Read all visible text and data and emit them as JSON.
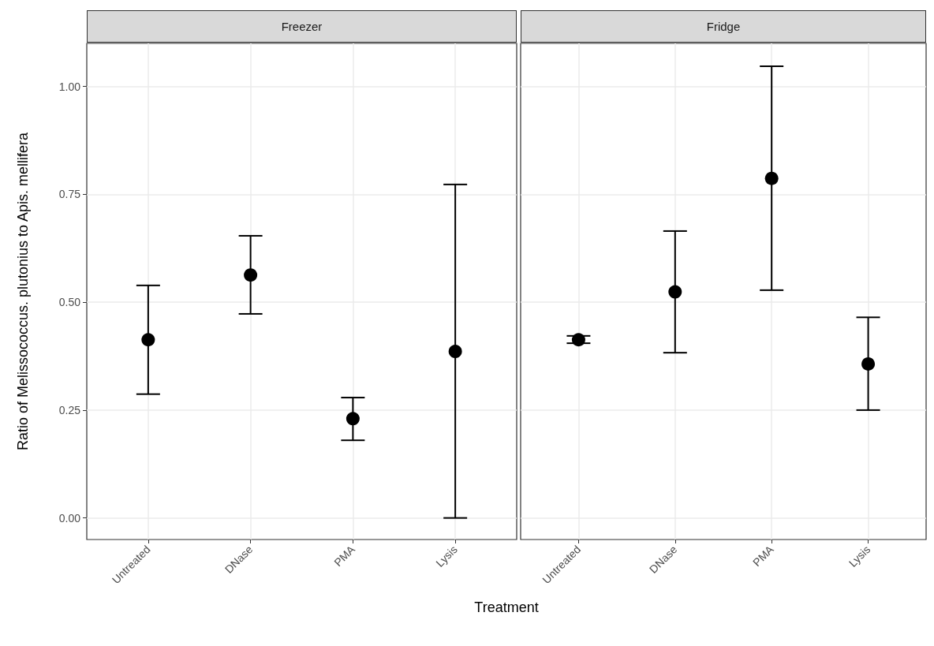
{
  "chart_data": [
    {
      "type": "scatter",
      "title": "Freezer",
      "ylabel": "Ratio of Melissococcus. plutonius to Apis. mellifera",
      "xlabel": "Treatment",
      "categories": [
        "Untreated",
        "DNase",
        "PMA",
        "Lysis"
      ],
      "series": [
        {
          "color": "#000000",
          "values": [
            0.413,
            0.563,
            0.23,
            0.386
          ],
          "errors": [
            [
              0.287,
              0.539
            ],
            [
              0.473,
              0.654
            ],
            [
              0.18,
              0.279
            ],
            [
              0,
              0.773
            ]
          ]
        }
      ],
      "ylim": [
        -0.05,
        1.1
      ],
      "yticks": [
        {
          "value": 0,
          "label": "0.00"
        },
        {
          "value": 0.25,
          "label": "0.25"
        },
        {
          "value": 0.5,
          "label": "0.50"
        },
        {
          "value": 0.75,
          "label": "0.75"
        },
        {
          "value": 1,
          "label": "1.00"
        }
      ],
      "grid": true,
      "marker": "circle"
    },
    {
      "type": "scatter",
      "title": "Fridge",
      "categories": [
        "Untreated",
        "DNase",
        "PMA",
        "Lysis"
      ],
      "series": [
        {
          "color": "#000000",
          "values": [
            0.413,
            0.524,
            0.787,
            0.357
          ],
          "errors": [
            [
              0.405,
              0.422
            ],
            [
              0.383,
              0.665
            ],
            [
              0.528,
              1.047
            ],
            [
              0.25,
              0.465
            ]
          ]
        }
      ],
      "ylim": [
        -0.05,
        1.1
      ],
      "yticks": [
        {
          "value": 0,
          "label": null
        },
        {
          "value": 0.25,
          "label": null
        },
        {
          "value": 0.5,
          "label": null
        },
        {
          "value": 0.75,
          "label": null
        },
        {
          "value": 1,
          "label": null
        }
      ],
      "grid": true,
      "marker": "circle",
      "tick_labels": "x"
    }
  ]
}
